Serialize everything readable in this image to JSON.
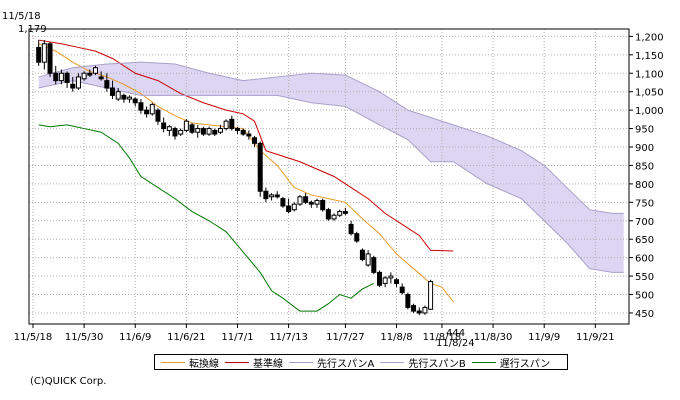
{
  "chart_data": {
    "type": "candlestick",
    "header": {
      "start_date": "11/5/18",
      "start_value": "1,179"
    },
    "low_marker": {
      "value": "444",
      "date": "11/8/24"
    },
    "x_ticks": [
      "11/5/18",
      "11/5/30",
      "11/6/9",
      "11/6/21",
      "11/7/1",
      "11/7/13",
      "11/7/27",
      "11/8/8",
      "11/8/18",
      "11/8/30",
      "11/9/9",
      "11/9/21"
    ],
    "y_ticks": [
      450,
      500,
      550,
      600,
      650,
      700,
      750,
      800,
      850,
      900,
      950,
      1000,
      1050,
      1100,
      1150,
      1200
    ],
    "y_tick_labels": [
      "450",
      "500",
      "550",
      "600",
      "650",
      "700",
      "750",
      "800",
      "850",
      "900",
      "950",
      "1,000",
      "1,050",
      "1,100",
      "1,150",
      "1,200"
    ],
    "ylim": [
      420,
      1220
    ],
    "xlim": [
      0,
      104
    ],
    "x_tick_positions": [
      0,
      9,
      18,
      27,
      36,
      45,
      55,
      64,
      72,
      81,
      90,
      99
    ],
    "grid": true,
    "candles": [
      [
        1,
        1170,
        1190,
        1120,
        1130
      ],
      [
        2,
        1130,
        1190,
        1110,
        1180
      ],
      [
        3,
        1180,
        1185,
        1090,
        1100
      ],
      [
        4,
        1100,
        1120,
        1070,
        1080
      ],
      [
        5,
        1080,
        1110,
        1070,
        1100
      ],
      [
        6,
        1100,
        1105,
        1060,
        1075
      ],
      [
        7,
        1070,
        1090,
        1050,
        1060
      ],
      [
        8,
        1060,
        1100,
        1055,
        1090
      ],
      [
        9,
        1085,
        1105,
        1080,
        1100
      ],
      [
        10,
        1100,
        1110,
        1090,
        1095
      ],
      [
        11,
        1100,
        1120,
        1095,
        1115
      ],
      [
        12,
        1090,
        1105,
        1080,
        1085
      ],
      [
        13,
        1080,
        1100,
        1050,
        1060
      ],
      [
        14,
        1060,
        1080,
        1030,
        1040
      ],
      [
        15,
        1030,
        1060,
        1025,
        1050
      ],
      [
        16,
        1040,
        1045,
        1020,
        1030
      ],
      [
        17,
        1030,
        1040,
        1020,
        1035
      ],
      [
        18,
        1030,
        1035,
        1010,
        1020
      ],
      [
        19,
        1020,
        1030,
        990,
        1000
      ],
      [
        20,
        1000,
        1010,
        980,
        990
      ],
      [
        21,
        990,
        1020,
        985,
        1015
      ],
      [
        22,
        1000,
        1005,
        960,
        970
      ],
      [
        23,
        965,
        980,
        940,
        950
      ],
      [
        24,
        945,
        960,
        930,
        955
      ],
      [
        25,
        950,
        955,
        920,
        930
      ],
      [
        26,
        935,
        950,
        930,
        945
      ],
      [
        27,
        945,
        975,
        940,
        970
      ],
      [
        28,
        960,
        965,
        935,
        940
      ],
      [
        29,
        940,
        960,
        925,
        950
      ],
      [
        30,
        950,
        955,
        930,
        935
      ],
      [
        31,
        935,
        955,
        930,
        950
      ],
      [
        32,
        945,
        950,
        930,
        935
      ],
      [
        33,
        940,
        960,
        935,
        950
      ],
      [
        34,
        950,
        975,
        945,
        970
      ],
      [
        35,
        975,
        985,
        945,
        950
      ],
      [
        36,
        950,
        955,
        935,
        945
      ],
      [
        37,
        945,
        950,
        930,
        935
      ],
      [
        38,
        935,
        945,
        920,
        930
      ],
      [
        39,
        925,
        930,
        900,
        910
      ],
      [
        40,
        910,
        915,
        765,
        780
      ],
      [
        41,
        780,
        790,
        750,
        760
      ],
      [
        42,
        765,
        775,
        755,
        770
      ],
      [
        43,
        770,
        780,
        760,
        765
      ],
      [
        44,
        760,
        765,
        735,
        740
      ],
      [
        45,
        740,
        760,
        720,
        725
      ],
      [
        46,
        730,
        750,
        725,
        745
      ],
      [
        47,
        745,
        770,
        740,
        765
      ],
      [
        48,
        765,
        775,
        745,
        750
      ],
      [
        49,
        750,
        755,
        735,
        745
      ],
      [
        50,
        745,
        760,
        735,
        755
      ],
      [
        51,
        755,
        760,
        725,
        730
      ],
      [
        52,
        730,
        735,
        700,
        705
      ],
      [
        53,
        705,
        720,
        700,
        715
      ],
      [
        54,
        715,
        730,
        710,
        725
      ],
      [
        55,
        725,
        735,
        715,
        720
      ],
      [
        56,
        690,
        700,
        660,
        665
      ],
      [
        57,
        665,
        670,
        640,
        645
      ],
      [
        58,
        620,
        625,
        590,
        595
      ],
      [
        59,
        580,
        620,
        575,
        610
      ],
      [
        60,
        600,
        605,
        555,
        560
      ],
      [
        61,
        560,
        565,
        520,
        525
      ],
      [
        62,
        530,
        550,
        520,
        545
      ],
      [
        63,
        545,
        560,
        530,
        550
      ],
      [
        64,
        540,
        545,
        520,
        530
      ],
      [
        65,
        520,
        530,
        500,
        505
      ],
      [
        66,
        500,
        505,
        460,
        465
      ],
      [
        67,
        470,
        475,
        450,
        455
      ],
      [
        68,
        455,
        465,
        444,
        450
      ],
      [
        69,
        450,
        470,
        445,
        465
      ],
      [
        70,
        460,
        540,
        458,
        535
      ]
    ],
    "series": [
      {
        "name": "転換線",
        "color": "#e89a2a",
        "role": "tenkan",
        "points": [
          [
            1,
            1180
          ],
          [
            4,
            1160
          ],
          [
            7,
            1130
          ],
          [
            10,
            1105
          ],
          [
            13,
            1090
          ],
          [
            16,
            1070
          ],
          [
            19,
            1045
          ],
          [
            22,
            1010
          ],
          [
            25,
            985
          ],
          [
            28,
            965
          ],
          [
            31,
            960
          ],
          [
            34,
            955
          ],
          [
            37,
            950
          ],
          [
            40,
            890
          ],
          [
            43,
            850
          ],
          [
            46,
            790
          ],
          [
            49,
            770
          ],
          [
            52,
            760
          ],
          [
            55,
            750
          ],
          [
            58,
            705
          ],
          [
            61,
            665
          ],
          [
            64,
            610
          ],
          [
            67,
            570
          ],
          [
            70,
            530
          ],
          [
            72,
            520
          ],
          [
            74,
            480
          ]
        ]
      },
      {
        "name": "基準線",
        "color": "#cc0000",
        "role": "kijun",
        "points": [
          [
            1,
            1190
          ],
          [
            5,
            1180
          ],
          [
            8,
            1170
          ],
          [
            11,
            1160
          ],
          [
            14,
            1140
          ],
          [
            18,
            1100
          ],
          [
            22,
            1080
          ],
          [
            26,
            1045
          ],
          [
            30,
            1020
          ],
          [
            34,
            1000
          ],
          [
            37,
            990
          ],
          [
            39,
            970
          ],
          [
            41,
            890
          ],
          [
            44,
            875
          ],
          [
            47,
            860
          ],
          [
            50,
            840
          ],
          [
            53,
            820
          ],
          [
            56,
            790
          ],
          [
            59,
            760
          ],
          [
            62,
            720
          ],
          [
            65,
            690
          ],
          [
            68,
            660
          ],
          [
            70,
            620
          ],
          [
            74,
            618
          ]
        ]
      },
      {
        "name": "先行スパンA",
        "color": "#a8a0c8",
        "role": "senkou_a",
        "points": [
          [
            1,
            1090
          ],
          [
            7,
            1115
          ],
          [
            13,
            1125
          ],
          [
            19,
            1130
          ],
          [
            25,
            1125
          ],
          [
            31,
            1100
          ],
          [
            37,
            1080
          ],
          [
            43,
            1090
          ],
          [
            49,
            1100
          ],
          [
            55,
            1095
          ],
          [
            61,
            1050
          ],
          [
            66,
            1000
          ],
          [
            70,
            980
          ],
          [
            74,
            960
          ],
          [
            80,
            930
          ],
          [
            86,
            890
          ],
          [
            90,
            850
          ],
          [
            94,
            790
          ],
          [
            98,
            730
          ],
          [
            102,
            720
          ],
          [
            104,
            720
          ]
        ]
      },
      {
        "name": "先行スパンB",
        "color": "#a8a0c8",
        "role": "senkou_b",
        "points": [
          [
            1,
            1060
          ],
          [
            7,
            1080
          ],
          [
            13,
            1060
          ],
          [
            19,
            1040
          ],
          [
            25,
            1040
          ],
          [
            31,
            1040
          ],
          [
            37,
            1040
          ],
          [
            43,
            1040
          ],
          [
            49,
            1020
          ],
          [
            55,
            1010
          ],
          [
            61,
            960
          ],
          [
            66,
            920
          ],
          [
            70,
            860
          ],
          [
            74,
            860
          ],
          [
            80,
            800
          ],
          [
            86,
            760
          ],
          [
            90,
            700
          ],
          [
            94,
            640
          ],
          [
            98,
            570
          ],
          [
            102,
            560
          ],
          [
            104,
            560
          ]
        ]
      },
      {
        "name": "遅行スパン",
        "color": "#007a00",
        "role": "chikou",
        "points": [
          [
            1,
            960
          ],
          [
            3,
            955
          ],
          [
            6,
            960
          ],
          [
            9,
            950
          ],
          [
            12,
            940
          ],
          [
            15,
            910
          ],
          [
            17,
            870
          ],
          [
            19,
            820
          ],
          [
            22,
            790
          ],
          [
            25,
            760
          ],
          [
            28,
            725
          ],
          [
            31,
            700
          ],
          [
            34,
            670
          ],
          [
            37,
            615
          ],
          [
            40,
            560
          ],
          [
            42,
            510
          ],
          [
            44,
            490
          ],
          [
            47,
            455
          ],
          [
            50,
            455
          ],
          [
            52,
            475
          ],
          [
            54,
            500
          ],
          [
            56,
            490
          ],
          [
            58,
            515
          ],
          [
            60,
            530
          ]
        ]
      }
    ],
    "legend": [
      "転換線",
      "基準線",
      "先行スパンA",
      "先行スパンB",
      "遅行スパン"
    ],
    "colors": {
      "cloud": "#dcd6f2",
      "cloud_edge": "#a8a0c8",
      "grid": "#b0b0b0",
      "frame": "#000000",
      "candle": "#000000"
    }
  },
  "footer": {
    "copyright": "(C)QUICK Corp."
  }
}
